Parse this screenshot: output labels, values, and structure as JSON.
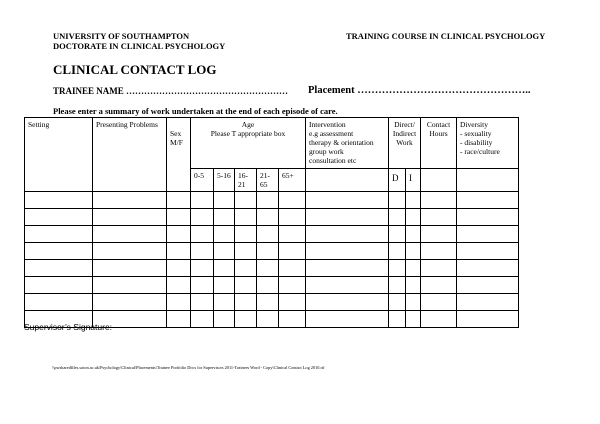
{
  "header": {
    "university": "UNIVERSITY OF SOUTHAMPTON",
    "programme": "DOCTORATE IN CLINICAL PSYCHOLOGY",
    "course": "TRAINING COURSE IN CLINICAL PSYCHOLOGY"
  },
  "title": "CLINICAL CONTACT LOG",
  "trainee_label": "TRAINEE NAME ………………………………………………",
  "placement_label": "Placement …………………………………………..",
  "instruction": "Please enter a summary of work undertaken at the end of each episode of care.",
  "table": {
    "setting": "Setting",
    "presenting": "Presenting Problems",
    "sex": [
      "Sex",
      "M/F"
    ],
    "age": [
      "Age",
      "Please T appropriate box"
    ],
    "intervention": [
      "Intervention",
      "e.g assessment",
      "therapy & orientation",
      "group work",
      "consultation etc"
    ],
    "direct": [
      "Direct/",
      "Indirect",
      "Work"
    ],
    "contact": [
      "Contact",
      "Hours"
    ],
    "diversity": [
      "Diversity",
      "- sexuality",
      "- disability",
      "- race/culture"
    ],
    "age_bands": [
      "0-5",
      "5-16",
      "16-21",
      "21-65",
      "65+"
    ],
    "direct_sub": [
      "D",
      "I"
    ],
    "empty_rows": 8
  },
  "signature": "Supervisor’s Signature:",
  "footer_path": "\\\\pwsharedfiles.soton.ac.uk\\Psychology\\Clinical\\Placements\\Trainee Portfolio Docs for Supervisors 2011-Trainees Word - Copy\\Clinical Contact Log 2010.rtf"
}
